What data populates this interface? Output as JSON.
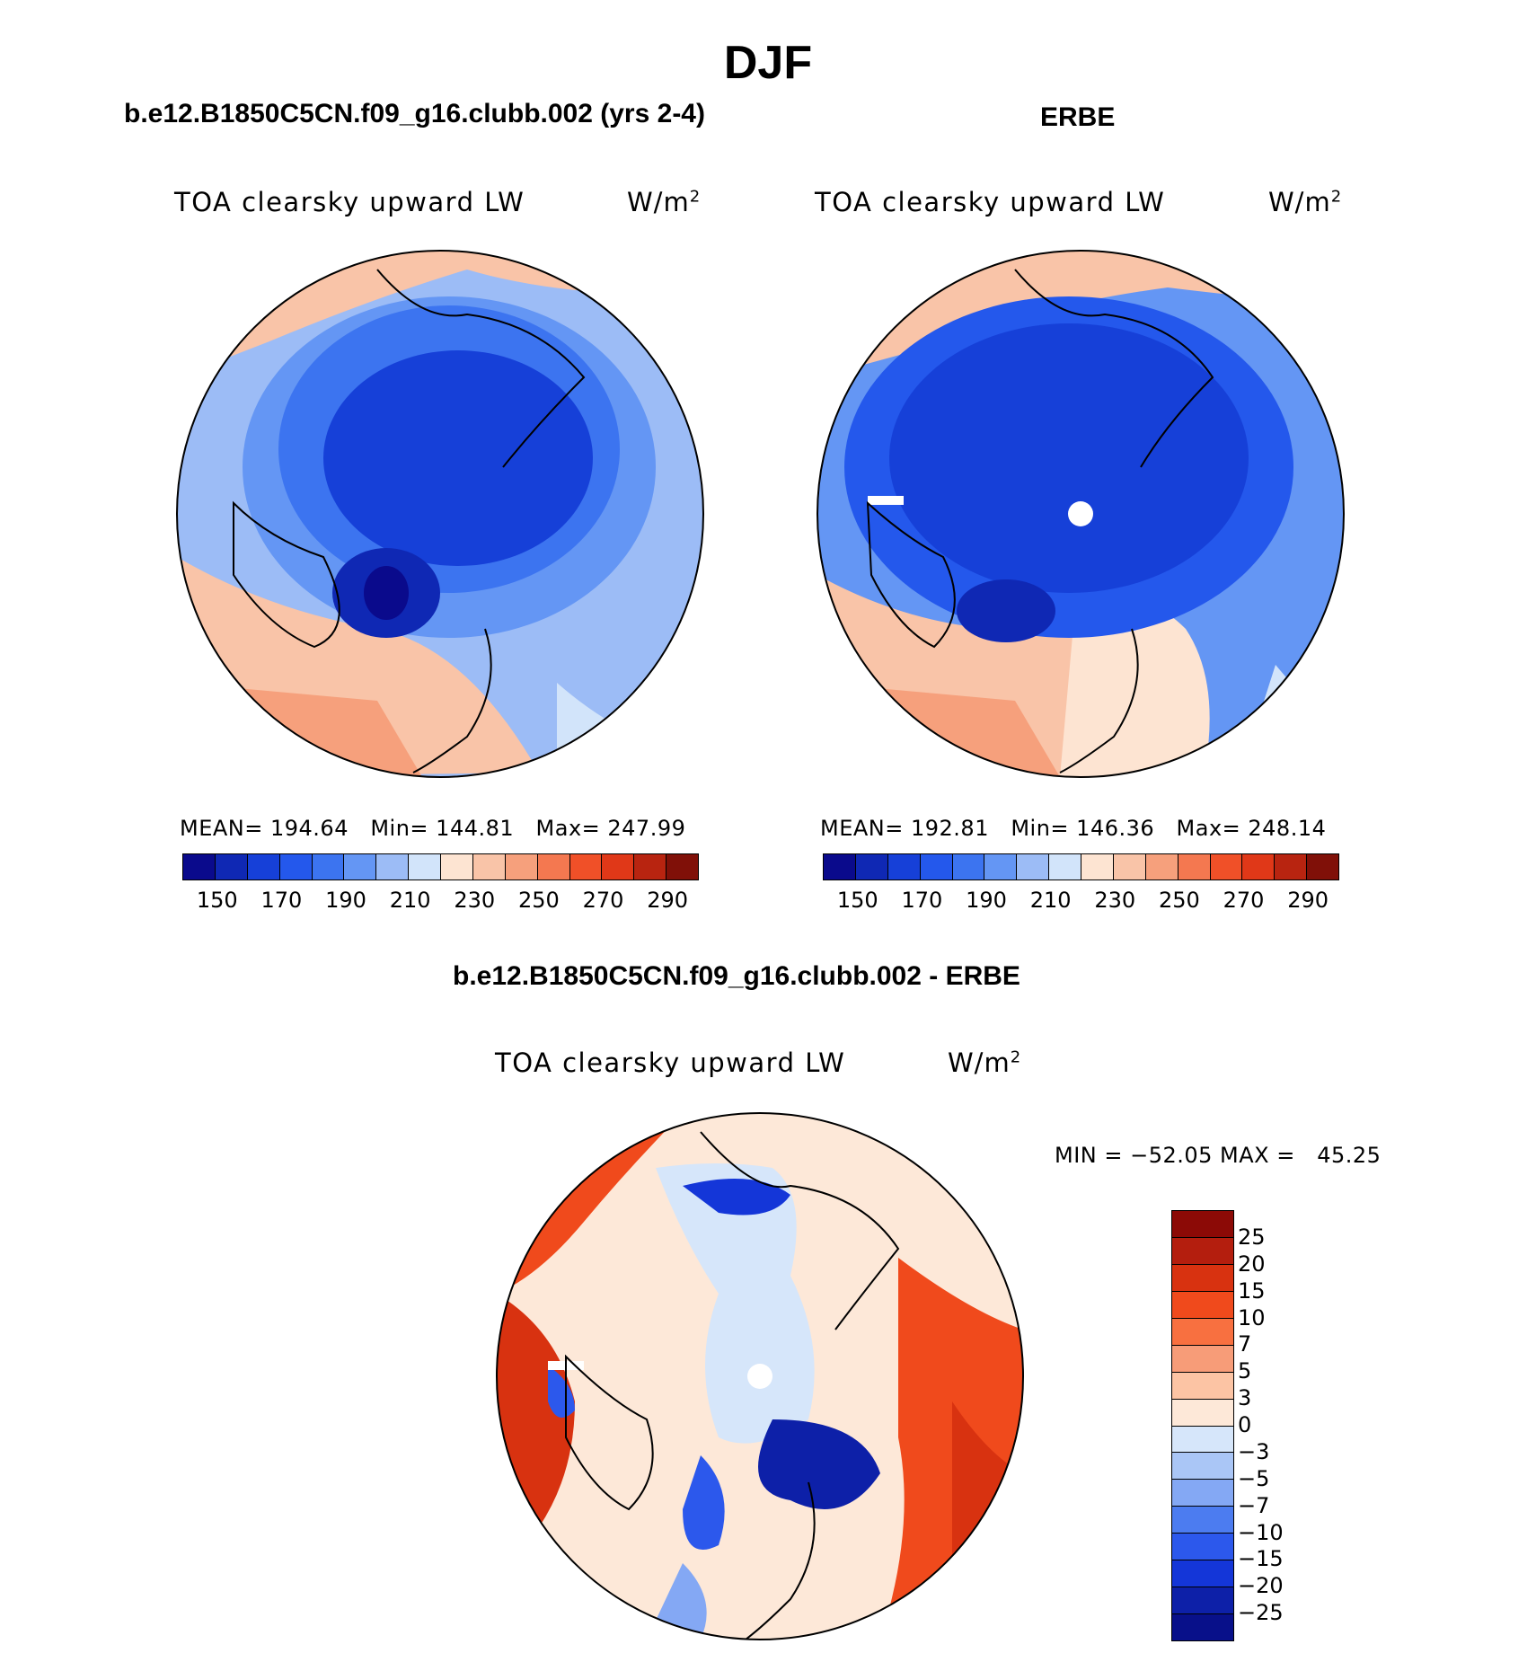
{
  "page": {
    "title": "DJF",
    "panels": [
      {
        "id": "model",
        "heading": "b.e12.B1850C5CN.f09_g16.clubb.002 (yrs 2-4)",
        "variable": "TOA clearsky upward LW",
        "units_base": "W/m",
        "units_exp": "2",
        "stats": "MEAN= 194.64   Min= 144.81   Max= 247.99"
      },
      {
        "id": "obs",
        "heading": "ERBE",
        "variable": "TOA clearsky upward LW",
        "units_base": "W/m",
        "units_exp": "2",
        "stats": "MEAN= 192.81   Min= 146.36   Max= 248.14"
      }
    ],
    "diff_panel": {
      "heading": "b.e12.B1850C5CN.f09_g16.clubb.002 - ERBE",
      "variable": "TOA clearsky upward LW",
      "units_base": "W/m",
      "units_exp": "2",
      "stats": "MIN = −52.05 MAX =   45.25"
    },
    "colorbar_main": {
      "ticks": [
        "150",
        "170",
        "190",
        "210",
        "230",
        "250",
        "270",
        "290"
      ],
      "colors": [
        "#0a0a8c",
        "#0f28b4",
        "#1640d8",
        "#2458ec",
        "#3c74f0",
        "#6496f4",
        "#9cbcf6",
        "#d2e4fa",
        "#fde4d2",
        "#f9c4a8",
        "#f6a07c",
        "#f47850",
        "#f05028",
        "#e03818",
        "#b82410",
        "#801008"
      ]
    },
    "colorbar_diff": {
      "ticks": [
        "25",
        "20",
        "15",
        "10",
        "7",
        "5",
        "3",
        "0",
        "−3",
        "−5",
        "−7",
        "−10",
        "−15",
        "−20",
        "−25"
      ],
      "colors": [
        "#8c0a06",
        "#b41e0e",
        "#d83210",
        "#f04a1c",
        "#f87040",
        "#f79c78",
        "#fcc4a4",
        "#fde8d8",
        "#d6e6fa",
        "#aac6f6",
        "#84a8f4",
        "#4c7cf0",
        "#2c58ec",
        "#1436d8",
        "#0d20a8",
        "#08108a"
      ]
    }
  }
}
